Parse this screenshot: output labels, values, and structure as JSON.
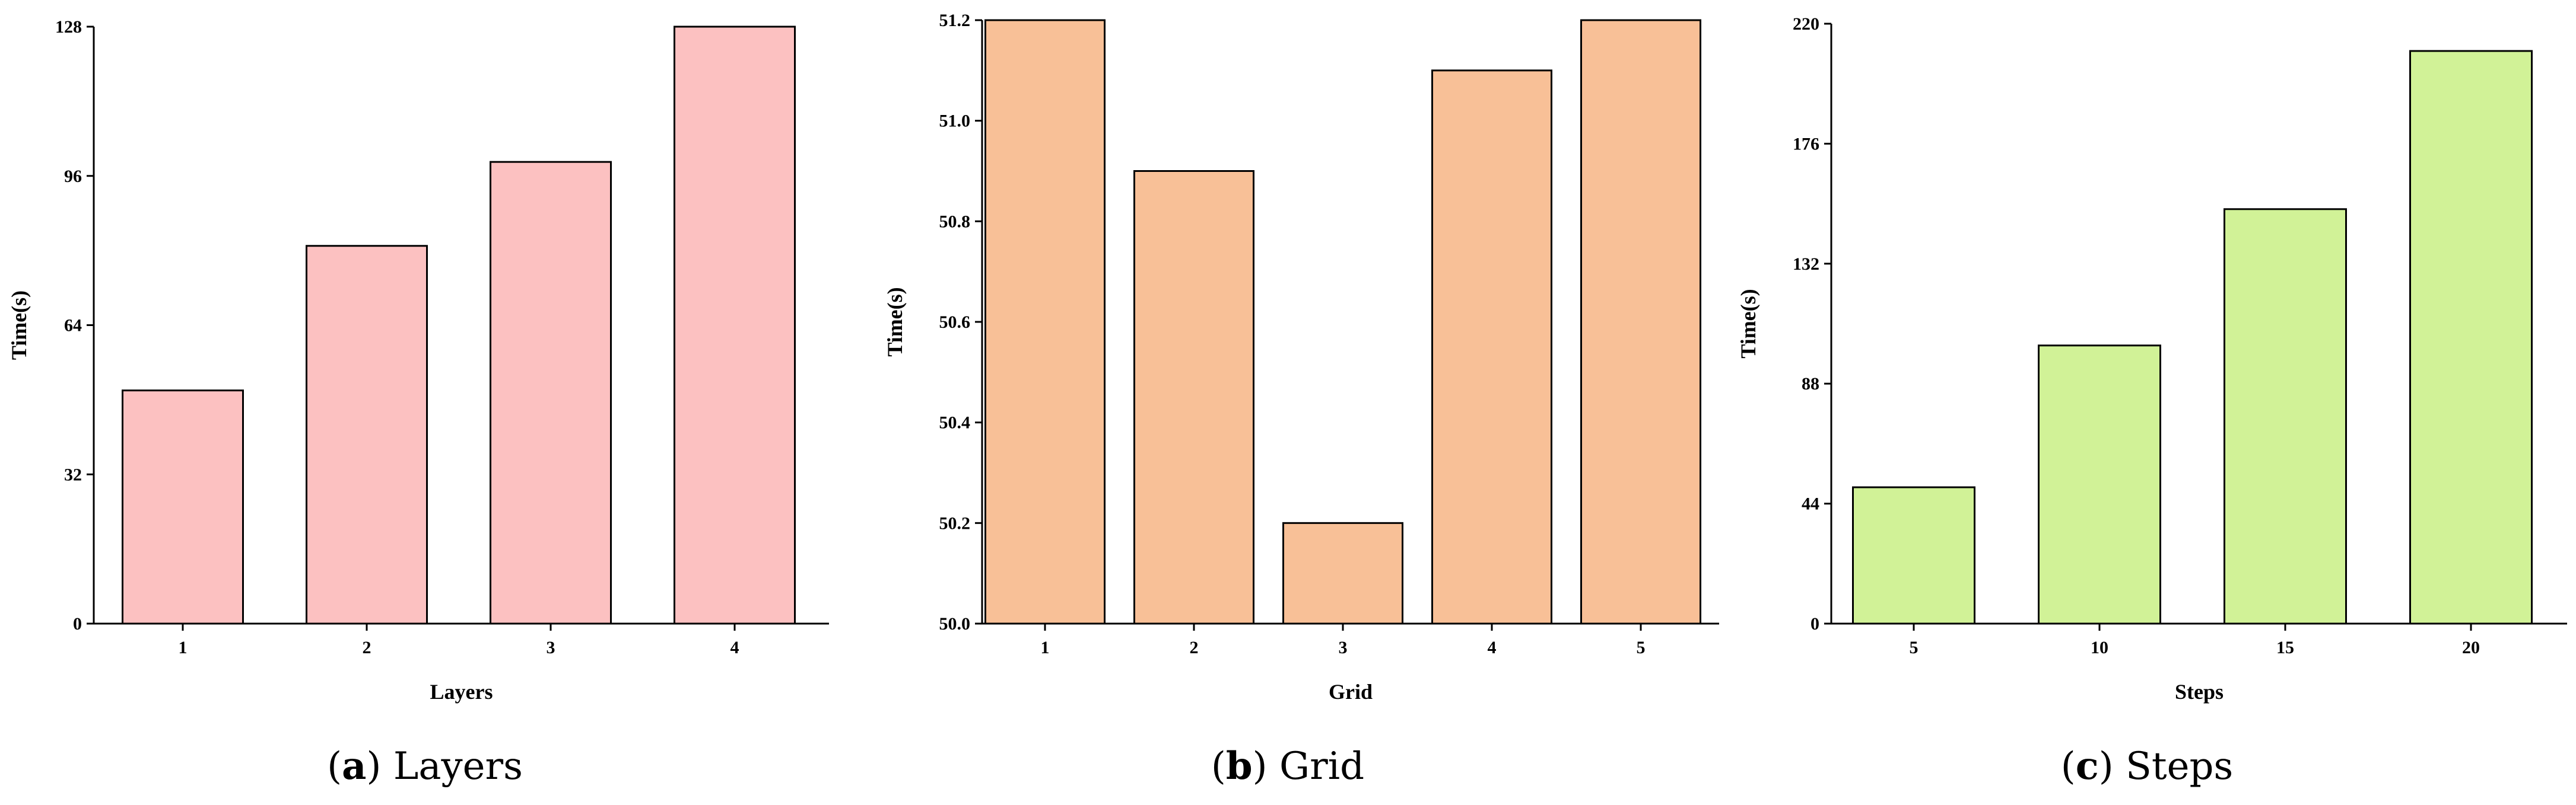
{
  "chart_data": [
    {
      "type": "bar",
      "panel_letter": "a",
      "caption": "Layers",
      "categories": [
        "1",
        "2",
        "3",
        "4"
      ],
      "values": [
        50,
        81,
        99,
        128
      ],
      "xlabel": "Layers",
      "ylabel": "Time(s)",
      "ylim": [
        0,
        128
      ],
      "yticks": [
        "0",
        "32",
        "64",
        "96",
        "128"
      ],
      "color": "#fcc1c1"
    },
    {
      "type": "bar",
      "panel_letter": "b",
      "caption": "Grid",
      "categories": [
        "1",
        "2",
        "3",
        "4",
        "5"
      ],
      "values": [
        51.2,
        50.9,
        50.2,
        51.1,
        51.2
      ],
      "xlabel": "Grid",
      "ylabel": "Time(s)",
      "ylim": [
        50.0,
        51.2
      ],
      "yticks": [
        "50.0",
        "50.2",
        "50.4",
        "50.6",
        "50.8",
        "51.0",
        "51.2"
      ],
      "color": "#f8c097"
    },
    {
      "type": "bar",
      "panel_letter": "c",
      "caption": "Steps",
      "categories": [
        "5",
        "10",
        "15",
        "20"
      ],
      "values": [
        50,
        102,
        152,
        210
      ],
      "xlabel": "Steps",
      "ylabel": "Time(s)",
      "ylim": [
        0,
        220
      ],
      "yticks": [
        "0",
        "44",
        "88",
        "132",
        "176",
        "220"
      ],
      "color": "#d1f297"
    }
  ]
}
